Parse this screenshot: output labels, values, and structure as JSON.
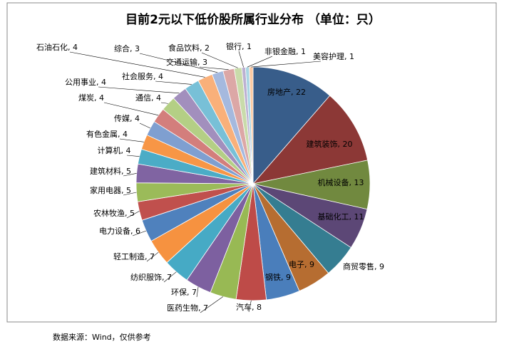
{
  "chart_data": {
    "type": "pie",
    "title": "目前2元以下低价股所属行业分布 （单位：只）",
    "source": "数据来源：Wind，仅供参考",
    "label_separator": ", ",
    "categories": [
      "房地产",
      "建筑装饰",
      "机械设备",
      "基础化工",
      "商贸零售",
      "电子",
      "钢铁",
      "汽车",
      "医药生物",
      "环保",
      "纺织服饰",
      "轻工制造",
      "电力设备",
      "农林牧渔",
      "家用电器",
      "建筑材料",
      "计算机",
      "有色金属",
      "传媒",
      "煤炭",
      "通信",
      "公用事业",
      "社会服务",
      "石油石化",
      "综合",
      "交通运输",
      "食品饮料",
      "银行",
      "非银金融",
      "美容护理"
    ],
    "values": [
      22,
      20,
      13,
      11,
      9,
      9,
      9,
      8,
      7,
      7,
      7,
      7,
      6,
      5,
      5,
      5,
      4,
      4,
      4,
      4,
      4,
      4,
      4,
      4,
      3,
      3,
      2,
      1,
      1,
      1
    ],
    "colors": [
      "#385d8a",
      "#8c3836",
      "#71893f",
      "#5c4776",
      "#357d91",
      "#b66d31",
      "#4a7ebb",
      "#be4b48",
      "#98b954",
      "#7d60a0",
      "#46aac5",
      "#f69240",
      "#4f81bd",
      "#c0504d",
      "#9bbb59",
      "#8064a2",
      "#4bacc6",
      "#f79646",
      "#7f9fd0",
      "#d37e7c",
      "#b4cf85",
      "#a28fbd",
      "#78c0d7",
      "#f9b07a",
      "#a5b9de",
      "#dca7a6",
      "#c9dbaa",
      "#bcb0d1",
      "#a9d5e3",
      "#fbc9a2"
    ]
  }
}
